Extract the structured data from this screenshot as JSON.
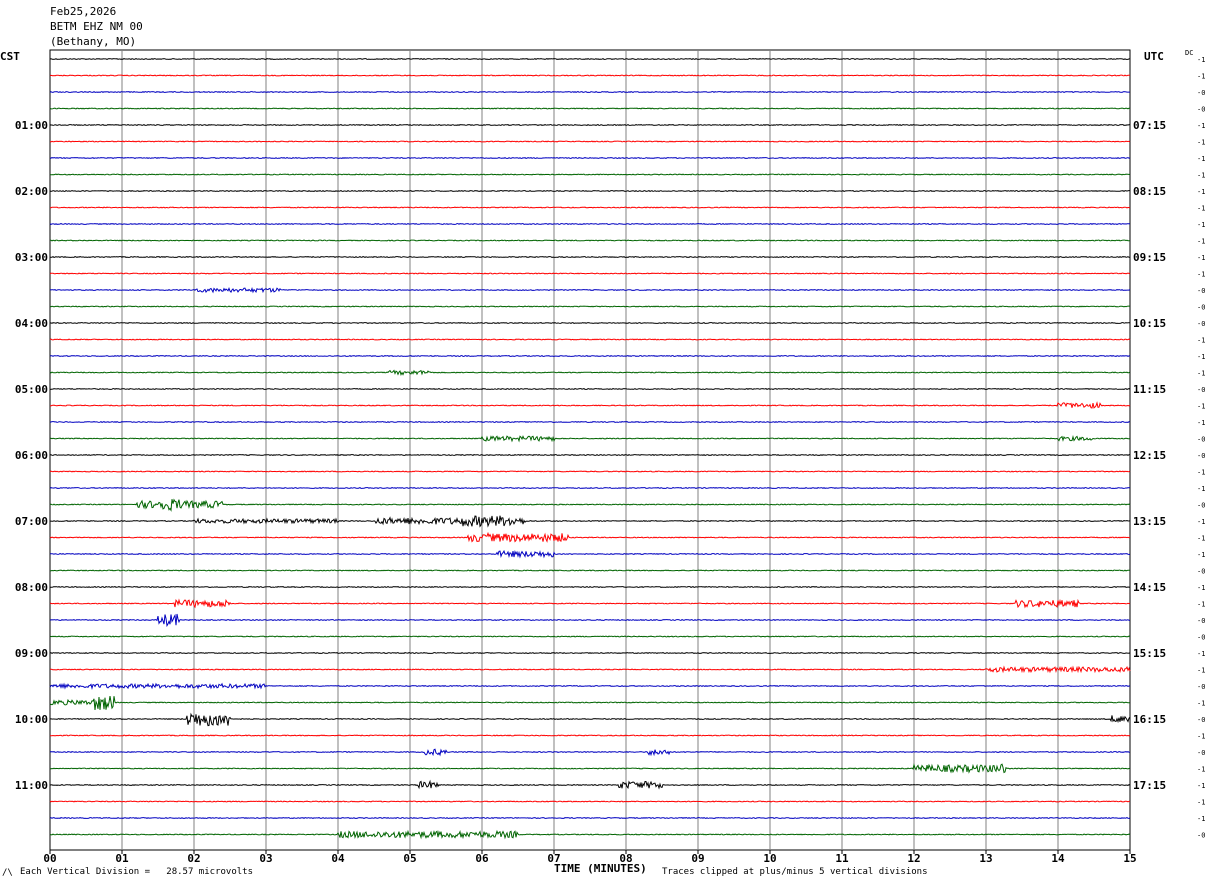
{
  "header": {
    "date": "Feb25,2026",
    "station": "BETM EHZ NM 00",
    "location": "(Bethany, MO)"
  },
  "labels": {
    "left_tz": "CST",
    "right_tz": "UTC",
    "dc": "DC"
  },
  "footer": {
    "scale": "Each Vertical Division =   28.57 microvolts",
    "xlabel": "TIME (MINUTES)",
    "clip_note": "Traces clipped at plus/minus 5 vertical divisions"
  },
  "colors": {
    "trace_cycle": [
      "#000000",
      "#ff0000",
      "#0000c0",
      "#006400"
    ],
    "grid": "#808080",
    "frame": "#000000"
  },
  "chart_data": {
    "type": "line",
    "title": "BETM EHZ NM 00",
    "xlabel": "TIME (MINUTES)",
    "ylabel": "",
    "xlim": [
      0,
      15
    ],
    "x_ticks": [
      "00",
      "01",
      "02",
      "03",
      "04",
      "05",
      "06",
      "07",
      "08",
      "09",
      "10",
      "11",
      "12",
      "13",
      "14",
      "15"
    ],
    "grid": true,
    "row_count": 48,
    "rows_per_hour": 4,
    "left_hour_labels": [
      "01:00",
      "02:00",
      "03:00",
      "04:00",
      "05:00",
      "06:00",
      "07:00",
      "08:00",
      "09:00",
      "10:00",
      "11:00"
    ],
    "right_hour_labels": [
      "07:15",
      "08:15",
      "09:15",
      "10:15",
      "11:15",
      "12:15",
      "13:15",
      "14:15",
      "15:15",
      "16:15",
      "17:15"
    ],
    "dc_offsets": [
      "-1",
      "-1",
      "-0",
      "-0",
      "-1",
      "-1",
      "-1",
      "-1",
      "-1",
      "-1",
      "-1",
      "-1",
      "-1",
      "-1",
      "-0",
      "-0",
      "-0",
      "-1",
      "-1",
      "-1",
      "-0",
      "-1",
      "-1",
      "-0",
      "-0",
      "-1",
      "-1",
      "-0",
      "-1",
      "-1",
      "-1",
      "-0",
      "-1",
      "-1",
      "-0",
      "-0",
      "-1",
      "-1",
      "-0",
      "-1",
      "-0",
      "-1",
      "-0",
      "-1",
      "-1",
      "-1",
      "-1",
      "-0"
    ],
    "events": [
      {
        "row": 14,
        "start": 2.0,
        "end": 3.2,
        "amp": 0.35
      },
      {
        "row": 19,
        "start": 4.7,
        "end": 5.3,
        "amp": 0.35
      },
      {
        "row": 21,
        "start": 14.0,
        "end": 14.6,
        "amp": 0.45
      },
      {
        "row": 23,
        "start": 6.0,
        "end": 7.0,
        "amp": 0.4
      },
      {
        "row": 23,
        "start": 14.0,
        "end": 14.5,
        "amp": 0.35
      },
      {
        "row": 27,
        "start": 1.2,
        "end": 2.4,
        "amp": 0.6
      },
      {
        "row": 27,
        "start": 1.5,
        "end": 1.8,
        "amp": 1.0
      },
      {
        "row": 28,
        "start": 2.0,
        "end": 4.0,
        "amp": 0.35
      },
      {
        "row": 28,
        "start": 4.5,
        "end": 6.6,
        "amp": 0.55
      },
      {
        "row": 28,
        "start": 5.7,
        "end": 6.5,
        "amp": 0.9
      },
      {
        "row": 29,
        "start": 5.8,
        "end": 7.2,
        "amp": 0.7
      },
      {
        "row": 30,
        "start": 6.2,
        "end": 7.0,
        "amp": 0.5
      },
      {
        "row": 33,
        "start": 1.7,
        "end": 2.5,
        "amp": 0.6
      },
      {
        "row": 33,
        "start": 13.4,
        "end": 14.3,
        "amp": 0.6
      },
      {
        "row": 34,
        "start": 1.5,
        "end": 1.8,
        "amp": 1.0
      },
      {
        "row": 37,
        "start": 13.0,
        "end": 15.0,
        "amp": 0.4
      },
      {
        "row": 38,
        "start": 0.0,
        "end": 3.0,
        "amp": 0.35
      },
      {
        "row": 39,
        "start": 0.6,
        "end": 0.9,
        "amp": 1.3
      },
      {
        "row": 39,
        "start": 0.0,
        "end": 0.6,
        "amp": 0.4
      },
      {
        "row": 40,
        "start": 1.9,
        "end": 2.5,
        "amp": 1.2
      },
      {
        "row": 40,
        "start": 14.7,
        "end": 15.0,
        "amp": 0.6
      },
      {
        "row": 42,
        "start": 5.2,
        "end": 5.5,
        "amp": 0.5
      },
      {
        "row": 42,
        "start": 8.3,
        "end": 8.6,
        "amp": 0.5
      },
      {
        "row": 43,
        "start": 12.0,
        "end": 13.3,
        "amp": 0.6
      },
      {
        "row": 43,
        "start": 13.2,
        "end": 13.3,
        "amp": 1.0
      },
      {
        "row": 44,
        "start": 5.1,
        "end": 5.4,
        "amp": 0.6
      },
      {
        "row": 44,
        "start": 7.9,
        "end": 8.5,
        "amp": 0.6
      },
      {
        "row": 47,
        "start": 4.0,
        "end": 6.5,
        "amp": 0.55
      }
    ]
  }
}
